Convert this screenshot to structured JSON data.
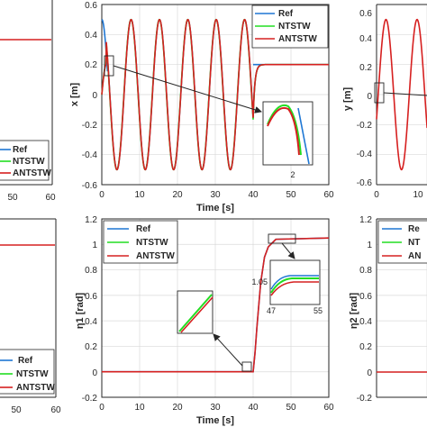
{
  "colors": {
    "ref": "#1f77d4",
    "ntstw": "#22dd22",
    "antstw": "#d62020",
    "grid": "#d9d9d9",
    "axis": "#262626"
  },
  "chart_data": [
    {
      "id": "left-top-partial",
      "type": "line",
      "xlabel": "",
      "ylabel": "",
      "x_ticks": [
        "50",
        "60"
      ],
      "legend": {
        "entries": [
          "Ref",
          "NTSTW",
          "ANTSTW"
        ],
        "placement": "bottom-right"
      },
      "series": [
        {
          "name": "ANTSTW",
          "note_visible": "flat line",
          "x": [
            0,
            60
          ],
          "y": [
            0,
            0
          ]
        }
      ]
    },
    {
      "id": "x-position",
      "type": "line",
      "xlabel": "Time [s]",
      "ylabel": "x [m]",
      "xlim": [
        0,
        60
      ],
      "ylim": [
        -0.6,
        0.6
      ],
      "x_ticks": [
        "0",
        "10",
        "20",
        "30",
        "40",
        "50",
        "60"
      ],
      "y_ticks": [
        "0.6",
        "0.4",
        "0.2",
        "0",
        "-0.2",
        "-0.4",
        "-0.6"
      ],
      "grid": true,
      "legend": {
        "entries": [
          "Ref",
          "NTSTW",
          "ANTSTW"
        ],
        "placement": "top-right"
      },
      "signal": {
        "amplitude": 0.5,
        "period": 7.5,
        "phase_deg": 90,
        "until": 40,
        "final_value": 0.2
      },
      "inset": {
        "tick": "2"
      }
    },
    {
      "id": "y-position-partial",
      "type": "line",
      "xlabel": "",
      "ylabel": "y [m]",
      "ylim": [
        -0.6,
        0.6
      ],
      "x_ticks": [
        "0",
        "10"
      ],
      "y_ticks": [
        "0.6",
        "0.4",
        "0.2",
        "0",
        "-0.2",
        "-0.4",
        "-0.6"
      ],
      "grid": true
    },
    {
      "id": "left-bottom-partial",
      "type": "line",
      "x_ticks": [
        "50",
        "60"
      ],
      "legend": {
        "entries": [
          "Ref",
          "NTSTW",
          "ANTSTW"
        ],
        "placement": "bottom-right"
      }
    },
    {
      "id": "eta1",
      "type": "line",
      "xlabel": "Time [s]",
      "ylabel": "η1 [rad]",
      "xlim": [
        0,
        60
      ],
      "ylim": [
        -0.2,
        1.2
      ],
      "x_ticks": [
        "0",
        "10",
        "20",
        "30",
        "40",
        "50",
        "60"
      ],
      "y_ticks": [
        "1.2",
        "1",
        "0.8",
        "0.6",
        "0.4",
        "0.2",
        "0",
        "-0.2"
      ],
      "grid": true,
      "legend": {
        "entries": [
          "Ref",
          "NTSTW",
          "ANTSTW"
        ],
        "placement": "top-left"
      },
      "series": [
        {
          "name": "Ref",
          "x": [
            0,
            40,
            40.5,
            41,
            42,
            43,
            44,
            46,
            60
          ],
          "y": [
            0,
            0,
            0.15,
            0.35,
            0.7,
            0.9,
            0.98,
            1.04,
            1.05
          ]
        },
        {
          "name": "ANTSTW",
          "x": [
            0,
            40,
            40.5,
            41,
            42,
            43,
            44,
            46,
            60
          ],
          "y": [
            0,
            0,
            0.15,
            0.35,
            0.7,
            0.9,
            0.98,
            1.04,
            1.05
          ]
        }
      ],
      "inset": {
        "ytick": "1.05",
        "xticks": [
          "47",
          "55"
        ]
      }
    },
    {
      "id": "eta2-partial",
      "type": "line",
      "xlabel": "",
      "ylabel": "η2 [rad]",
      "ylim": [
        -0.2,
        1.2
      ],
      "y_ticks": [
        "1.2",
        "1",
        "0.8",
        "0.6",
        "0.4",
        "0.2",
        "0",
        "-0.2"
      ],
      "grid": true,
      "legend": {
        "entries": [
          "Re",
          "NT",
          "AN"
        ],
        "placement": "top-left"
      }
    }
  ]
}
